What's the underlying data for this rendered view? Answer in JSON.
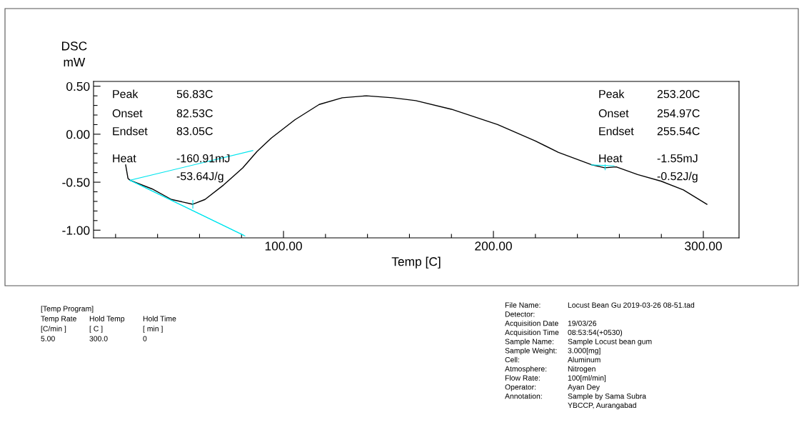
{
  "chart_data": {
    "type": "line",
    "ylabel": "DSC\nmW",
    "xlabel": "Temp [C]",
    "xlim": [
      9.5,
      317
    ],
    "ylim": [
      -1.08,
      0.55
    ],
    "xticks": [
      {
        "value": 20,
        "label": null
      },
      {
        "value": 40,
        "label": null
      },
      {
        "value": 60,
        "label": null
      },
      {
        "value": 80,
        "label": null
      },
      {
        "value": 100,
        "label": "100.00"
      },
      {
        "value": 120,
        "label": null
      },
      {
        "value": 140,
        "label": null
      },
      {
        "value": 160,
        "label": null
      },
      {
        "value": 180,
        "label": null
      },
      {
        "value": 200,
        "label": "200.00"
      },
      {
        "value": 220,
        "label": null
      },
      {
        "value": 240,
        "label": null
      },
      {
        "value": 260,
        "label": null
      },
      {
        "value": 280,
        "label": null
      },
      {
        "value": 300,
        "label": "300.00"
      }
    ],
    "yticks": [
      {
        "value": -1.0,
        "label": "-1.00"
      },
      {
        "value": -0.9,
        "label": null
      },
      {
        "value": -0.8,
        "label": null
      },
      {
        "value": -0.7,
        "label": null
      },
      {
        "value": -0.6,
        "label": null
      },
      {
        "value": -0.5,
        "label": "-0.50"
      },
      {
        "value": -0.4,
        "label": null
      },
      {
        "value": -0.3,
        "label": null
      },
      {
        "value": -0.2,
        "label": null
      },
      {
        "value": -0.1,
        "label": null
      },
      {
        "value": 0.0,
        "label": "0.00"
      },
      {
        "value": 0.1,
        "label": null
      },
      {
        "value": 0.2,
        "label": null
      },
      {
        "value": 0.3,
        "label": null
      },
      {
        "value": 0.4,
        "label": null
      },
      {
        "value": 0.5,
        "label": "0.50"
      }
    ],
    "grid": false,
    "legend": false,
    "marker": "none",
    "line_style": "solid",
    "series": [
      {
        "color": "#000000",
        "x": [
          24.8,
          25.9,
          26.9,
          37.4,
          46.6,
          56.8,
          62.6,
          71.4,
          80.6,
          87.4,
          94.2,
          105.4,
          117,
          128,
          139.5,
          152,
          163,
          180,
          202,
          220,
          231,
          247,
          253,
          258.5,
          268.7,
          280,
          290.5,
          301.7
        ],
        "values": [
          -0.32,
          -0.46,
          -0.48,
          -0.57,
          -0.68,
          -0.73,
          -0.68,
          -0.53,
          -0.35,
          -0.18,
          -0.04,
          0.15,
          0.31,
          0.38,
          0.4,
          0.38,
          0.35,
          0.26,
          0.1,
          -0.07,
          -0.19,
          -0.32,
          -0.35,
          -0.34,
          -0.42,
          -0.49,
          -0.58,
          -0.73
        ]
      },
      {
        "color": "#00e5ee",
        "x": [
          26.9,
          85.4
        ],
        "values": [
          -0.48,
          -0.17
        ]
      },
      {
        "color": "#00e5ee",
        "x": [
          26.9,
          81.6
        ],
        "values": [
          -0.48,
          -1.06
        ]
      },
      {
        "color": "#00e5ee",
        "x": [
          26.9,
          80.8
        ],
        "values": [
          -0.48,
          -1.05
        ]
      },
      {
        "color": "#00e5ee",
        "x": [
          56.8,
          56.8
        ],
        "values": [
          -0.69,
          -0.77
        ]
      },
      {
        "color": "#00e5ee",
        "x": [
          246.6,
          257.5
        ],
        "values": [
          -0.32,
          -0.33
        ]
      },
      {
        "color": "#00e5ee",
        "x": [
          253.2,
          253.2
        ],
        "values": [
          -0.32,
          -0.37
        ]
      }
    ],
    "annotations": [
      "Peak",
      "56.83C",
      "Onset",
      "82.53C",
      "Endset",
      "83.05C",
      "Heat",
      "-160.91mJ",
      "-53.64J/g",
      "Peak",
      "253.20C",
      "Onset",
      "254.97C",
      "Endset",
      "255.54C",
      "Heat",
      "-1.55mJ",
      "-0.52J/g",
      "[Temp Program]",
      "Temp Rate",
      "Hold Temp",
      "Hold Time",
      "[C/min ]",
      "[ C ]",
      "[ min ]",
      "5.00",
      "300.0",
      "0",
      "File Name:",
      "Locust Bean Gu 2019-03-26 08-51.tad",
      "Detector:",
      "Acquisition Date",
      "19/03/26",
      "Acquisition Time",
      "08:53:54(+0530)",
      "Sample Name:",
      "Sample Locust bean gum",
      "Sample Weight:",
      "3.000[mg]",
      "Cell:",
      "Aluminum",
      "Atmosphere:",
      "Nitrogen",
      "Flow Rate:",
      "100[ml/min]",
      "Operator:",
      "Ayan Dey",
      "Annotation:",
      "Sample by Sama Subra",
      "YBCCP, Aurangabad"
    ]
  }
}
